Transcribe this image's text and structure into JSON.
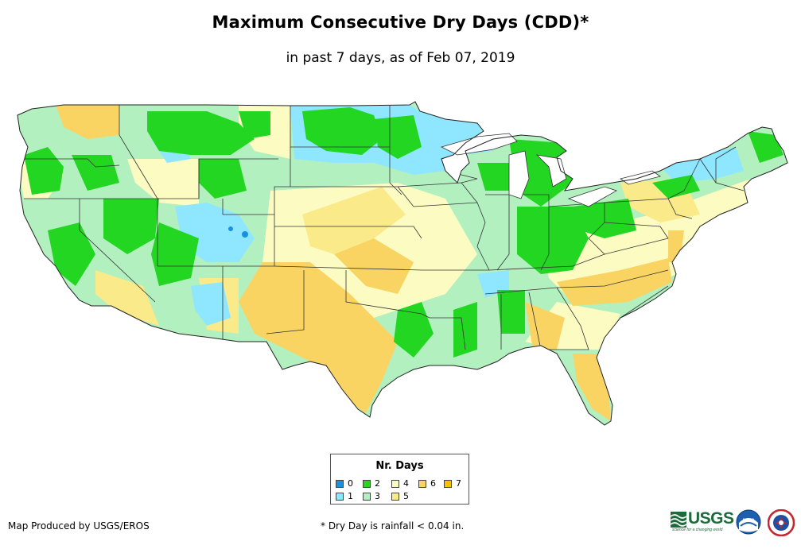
{
  "title": "Maximum Consecutive Dry Days (CDD)*",
  "subtitle": "in past 7 days, as of Feb 07, 2019",
  "legend": {
    "title": "Nr. Days",
    "items": [
      {
        "label": "0",
        "color": "#1a90e0"
      },
      {
        "label": "1",
        "color": "#8fe6ff"
      },
      {
        "label": "2",
        "color": "#22d622"
      },
      {
        "label": "3",
        "color": "#b2f0c0"
      },
      {
        "label": "4",
        "color": "#fbfbc2"
      },
      {
        "label": "5",
        "color": "#fbea8a"
      },
      {
        "label": "6",
        "color": "#fad462"
      },
      {
        "label": "7",
        "color": "#f5c200"
      }
    ]
  },
  "credit": "Map Produced by USGS/EROS",
  "footnote": "* Dry Day is rainfall < 0.04 in.",
  "logos": {
    "usgs": "USGS",
    "usgs_tagline": "science for a changing world",
    "noaa": "noaa"
  }
}
